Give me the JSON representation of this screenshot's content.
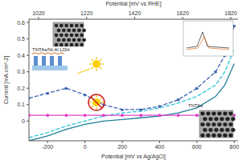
{
  "chart_data": {
    "type": "line",
    "x_label": "Potential [mV vs Ag/AgCl]",
    "x2_label": "Potential [mV vs RHE]",
    "y_label": "Current [mA.cm^-2]",
    "x": [
      -300,
      -200,
      -100,
      0,
      100,
      200,
      300,
      400,
      500,
      600,
      700,
      750,
      800
    ],
    "xlim": [
      -300,
      820
    ],
    "xticks": [
      -200,
      0,
      200,
      400,
      600,
      800
    ],
    "x2lim": [
      980,
      1850
    ],
    "x2ticks": [
      1020,
      1220,
      1420,
      1620,
      1820
    ],
    "ylim": [
      -0.12,
      0.62
    ],
    "yticks": [
      0,
      0.1,
      0.2,
      0.3,
      0.4,
      0.5,
      0.6
    ],
    "grid": false,
    "series": [
      {
        "color": "#3b63b0",
        "line_style": "dashed",
        "marker": "circle",
        "values": [
          0.14,
          0.17,
          0.2,
          0.16,
          0.1,
          0.07,
          0.07,
          0.09,
          0.13,
          0.2,
          0.3,
          0.4,
          0.58
        ]
      },
      {
        "color": "#2ec4d6",
        "line_style": "dashed",
        "values": [
          -0.1,
          -0.07,
          -0.03,
          0.0,
          0.03,
          0.05,
          0.06,
          0.08,
          0.11,
          0.15,
          0.22,
          0.3,
          0.44
        ]
      },
      {
        "color": "#1f7f9a",
        "line_style": "solid",
        "values": [
          -0.12,
          -0.09,
          -0.05,
          -0.02,
          0.0,
          0.01,
          0.02,
          0.03,
          0.05,
          0.08,
          0.15,
          0.22,
          0.35
        ]
      },
      {
        "color": "#e040c8",
        "line_style": "solid",
        "marker": "circle",
        "values": [
          0.035,
          0.035,
          0.035,
          0.035,
          0.035,
          0.035,
          0.035,
          0.035,
          0.035,
          0.035,
          0.035,
          0.035,
          0.035
        ]
      }
    ],
    "annotations": [
      "TNTAs/Ni-Al LDH",
      "TNTAs"
    ]
  }
}
